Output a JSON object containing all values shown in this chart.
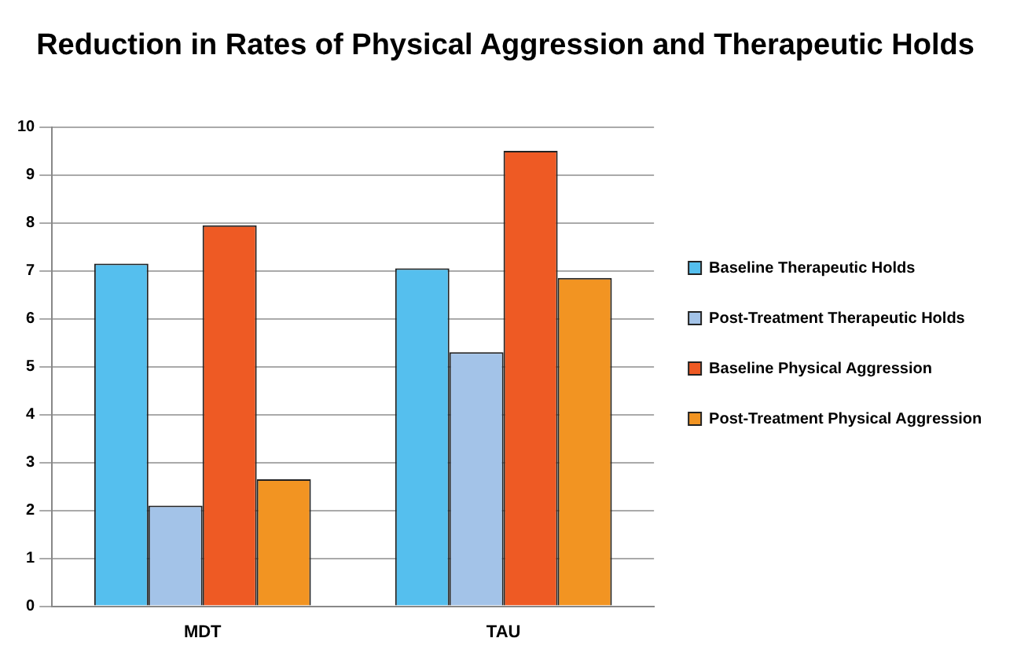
{
  "chart_data": {
    "type": "bar",
    "title": "Reduction in Rates of Physical Aggression and Therapeutic Holds",
    "categories": [
      "MDT",
      "TAU"
    ],
    "series": [
      {
        "name": "Baseline Therapeutic Holds",
        "color": "#55bfee",
        "values": [
          7.15,
          7.05
        ]
      },
      {
        "name": "Post-Treatment Therapeutic Holds",
        "color": "#a3c3e8",
        "values": [
          2.1,
          5.3
        ]
      },
      {
        "name": "Baseline Physical Aggression",
        "color": "#ee5a24",
        "values": [
          7.95,
          9.5
        ]
      },
      {
        "name": "Post-Treatment Physical Aggression",
        "color": "#f29422",
        "values": [
          2.65,
          6.85
        ]
      }
    ],
    "ylim": [
      0,
      10
    ],
    "yticks": [
      0,
      1,
      2,
      3,
      4,
      5,
      6,
      7,
      8,
      9,
      10
    ],
    "grid": "y",
    "legend": "right"
  }
}
